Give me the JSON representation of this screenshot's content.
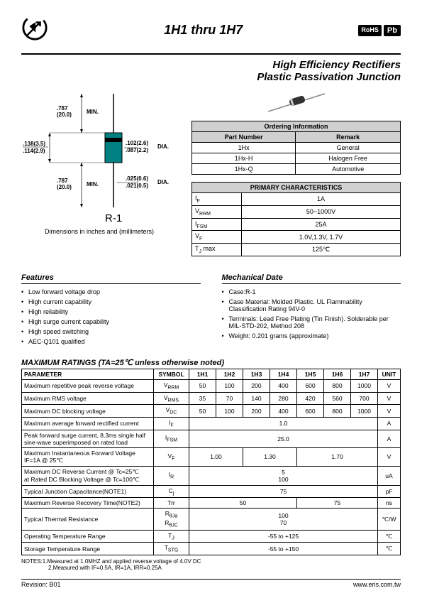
{
  "title_range": "1H1  thru 1H7",
  "main_title_l1": "High Efficiency Rectifiers",
  "main_title_l2": "Plastic Passivation Junction",
  "badges": {
    "rohs": "RoHS",
    "pb": "Pb"
  },
  "drawing": {
    "package_label": "R-1",
    "caption": "Dimensions in inches and (millimeters)",
    "dims": {
      "lead_len_top": ".787\n(20.0)",
      "min_top": "MIN.",
      "lead_len_bot": ".787\n(20.0)",
      "min_bot": "MIN.",
      "body_w1": ".138(3.5)",
      "body_w2": ".114(2.9)",
      "body_h1": ".102(2.6)",
      "body_h2": ".087(2.2)",
      "dia1": "DIA.",
      "lead_d1": ".025(0.6)",
      "lead_d2": ".021(0.5)",
      "dia2": "DIA."
    }
  },
  "ordering": {
    "header": "Ordering Information",
    "cols": [
      "Part Number",
      "Remark"
    ],
    "rows": [
      [
        "1Hx",
        "General"
      ],
      [
        "1Hx-H",
        "Halogen Free"
      ],
      [
        "1Hx-Q",
        "Automotive"
      ]
    ]
  },
  "primary": {
    "header": "PRIMARY CHARACTERISTICS",
    "rows": [
      [
        "I_F",
        "1A"
      ],
      [
        "V_RRM",
        "50~1000V"
      ],
      [
        "I_FSM",
        "25A"
      ],
      [
        "V_F",
        "1.0V,1.3V, 1.7V"
      ],
      [
        "T_J max",
        "125℃"
      ]
    ]
  },
  "features": {
    "title": "Features",
    "items": [
      "Low forward voltage drop",
      "High current capability",
      "High reliability",
      "High surge current capability",
      "High speed switching",
      "AEC-Q101 qualified"
    ]
  },
  "mechanical": {
    "title": "Mechanical Date",
    "items": [
      "Case:R-1",
      "Case Material: Molded Plastic. UL Flammability Classification Rating 94V-0",
      "Terminals: Lead Free Plating (Tin Finish). Solderable per MIL-STD-202, Method 208",
      "Weight: 0.201 grams (approximate)"
    ]
  },
  "ratings": {
    "title": "MAXIMUM RATINGS (TA=25℃ unless otherwise noted)",
    "head": [
      "PARAMETER",
      "SYMBOL",
      "1H1",
      "1H2",
      "1H3",
      "1H4",
      "1H5",
      "1H6",
      "1H7",
      "UNIT"
    ],
    "rows": [
      {
        "p": "Maximum repetitive peak reverse voltage",
        "s": "V_RRM",
        "v": [
          "50",
          "100",
          "200",
          "400",
          "600",
          "800",
          "1000"
        ],
        "u": "V"
      },
      {
        "p": "Maximum RMS voltage",
        "s": "V_RMS",
        "v": [
          "35",
          "70",
          "140",
          "280",
          "420",
          "560",
          "700"
        ],
        "u": "V"
      },
      {
        "p": "Maximum DC blocking voltage",
        "s": "V_DC",
        "v": [
          "50",
          "100",
          "200",
          "400",
          "600",
          "800",
          "1000"
        ],
        "u": "V"
      },
      {
        "p": "Maximum average forward rectified current",
        "s": "I_F",
        "span": "1.0",
        "u": "A"
      },
      {
        "p": "Peak forward surge current, 8.3ms single half sine-wave superimposed on rated load",
        "s": "I_FSM",
        "span": "25.0",
        "u": "A"
      },
      {
        "p": "Maximum Instantaneous Forward Voltage IF=1A @ 25℃",
        "s": "V_F",
        "multi": [
          {
            "c": 2,
            "t": "1.00"
          },
          {
            "c": 2,
            "t": "1.30"
          },
          {
            "c": 3,
            "t": "1.70"
          }
        ],
        "u": "V"
      },
      {
        "p": "Maximum DC Reverse Current @ Tc=25℃\nat Rated DC Blocking Voltage @ Tc=100℃",
        "s": "I_R",
        "stack": [
          "5",
          "100"
        ],
        "u": "uA"
      },
      {
        "p": "Typical Junction Capacitance(NOTE1)",
        "s": "C_j",
        "span": "75",
        "u": "pF"
      },
      {
        "p": "Maximum Reverse Recovery Time(NOTE2)",
        "s": "Trr",
        "multi": [
          {
            "c": 4,
            "t": "50"
          },
          {
            "c": 3,
            "t": "75"
          }
        ],
        "u": "ns"
      },
      {
        "p": "Typical Thermal Resistance",
        "s": "R_θJa\nR_θJC",
        "stack": [
          "100",
          "70"
        ],
        "u": "℃/W"
      },
      {
        "p": "Operating Temperature Range",
        "s": "T_J",
        "span": "-55 to +125",
        "u": "℃"
      },
      {
        "p": "Storage Temperature Range",
        "s": "T_STG",
        "span": "-55 to +150",
        "u": "℃"
      }
    ]
  },
  "notes_l1": "NOTES:1.Measured at 1.0MHZ and applied reverse voltage of 4.0V DC",
  "notes_l2": "2.Measured with IF=0.5A, IR=1A, IRR=0.25A",
  "revision": "Revision: B01",
  "url": "www.eris.com.tw"
}
